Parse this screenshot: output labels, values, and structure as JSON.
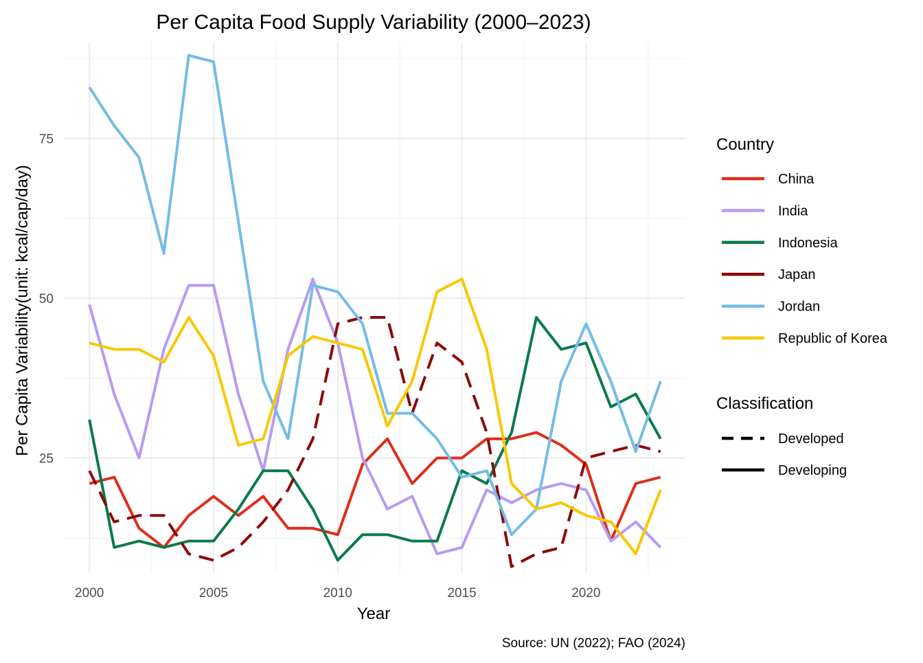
{
  "chart_data": {
    "type": "line",
    "title": "Per Capita Food Supply Variability (2000–2023)",
    "xlabel": "Year",
    "ylabel": "Per Capita Variability(unit: kcal/cap/day)",
    "caption": "Source: UN (2022); FAO (2024)",
    "xlim": [
      1999.0,
      2024.0
    ],
    "ylim": [
      7.0,
      90.0
    ],
    "x_ticks": [
      2000,
      2005,
      2010,
      2015,
      2020
    ],
    "y_ticks": [
      25,
      50,
      75
    ],
    "grid": true,
    "legend_position": "right",
    "legend_color_title": "Country",
    "legend_linetype_title": "Classification",
    "classifications": [
      {
        "name": "Developed",
        "dash": "dashed"
      },
      {
        "name": "Developing",
        "dash": "solid"
      }
    ],
    "x": [
      2000,
      2001,
      2002,
      2003,
      2004,
      2005,
      2006,
      2007,
      2008,
      2009,
      2010,
      2011,
      2012,
      2013,
      2014,
      2015,
      2016,
      2017,
      2018,
      2019,
      2020,
      2021,
      2022,
      2023
    ],
    "series": [
      {
        "name": "China",
        "classification": "Developing",
        "color": "#de2d1b",
        "values": [
          21,
          22,
          14,
          11,
          16,
          19,
          16,
          19,
          14,
          14,
          13,
          24,
          28,
          21,
          25,
          25,
          28,
          28,
          29,
          27,
          24,
          12,
          21,
          22
        ]
      },
      {
        "name": "India",
        "classification": "Developing",
        "color": "#b79af4",
        "values": [
          49,
          35,
          25,
          42,
          52,
          52,
          35,
          23,
          42,
          53,
          43,
          25,
          17,
          19,
          10,
          11,
          20,
          18,
          20,
          21,
          20,
          12,
          15,
          11
        ]
      },
      {
        "name": "Indonesia",
        "classification": "Developing",
        "color": "#0a7a4a",
        "values": [
          31,
          11,
          12,
          11,
          12,
          12,
          17,
          23,
          23,
          17,
          9,
          13,
          13,
          12,
          12,
          23,
          21,
          29,
          47,
          42,
          43,
          33,
          35,
          28
        ]
      },
      {
        "name": "Japan",
        "classification": "Developed",
        "color": "#8c0a0a",
        "values": [
          23,
          15,
          16,
          16,
          10,
          9,
          11,
          15,
          20,
          28,
          46,
          47,
          47,
          32,
          43,
          40,
          29,
          8,
          10,
          11,
          25,
          26,
          27,
          26
        ]
      },
      {
        "name": "Jordan",
        "classification": "Developing",
        "color": "#74bce6",
        "values": [
          83,
          77,
          72,
          57,
          88,
          87,
          62,
          37,
          28,
          52,
          51,
          46,
          32,
          32,
          28,
          22,
          23,
          13,
          17,
          37,
          46,
          37,
          26,
          37
        ]
      },
      {
        "name": "Republic of Korea",
        "classification": "Developing",
        "color": "#f8c800",
        "values": [
          43,
          42,
          42,
          40,
          47,
          41,
          27,
          28,
          41,
          44,
          43,
          42,
          30,
          37,
          51,
          53,
          42,
          21,
          17,
          18,
          16,
          15,
          10,
          20
        ]
      }
    ]
  }
}
